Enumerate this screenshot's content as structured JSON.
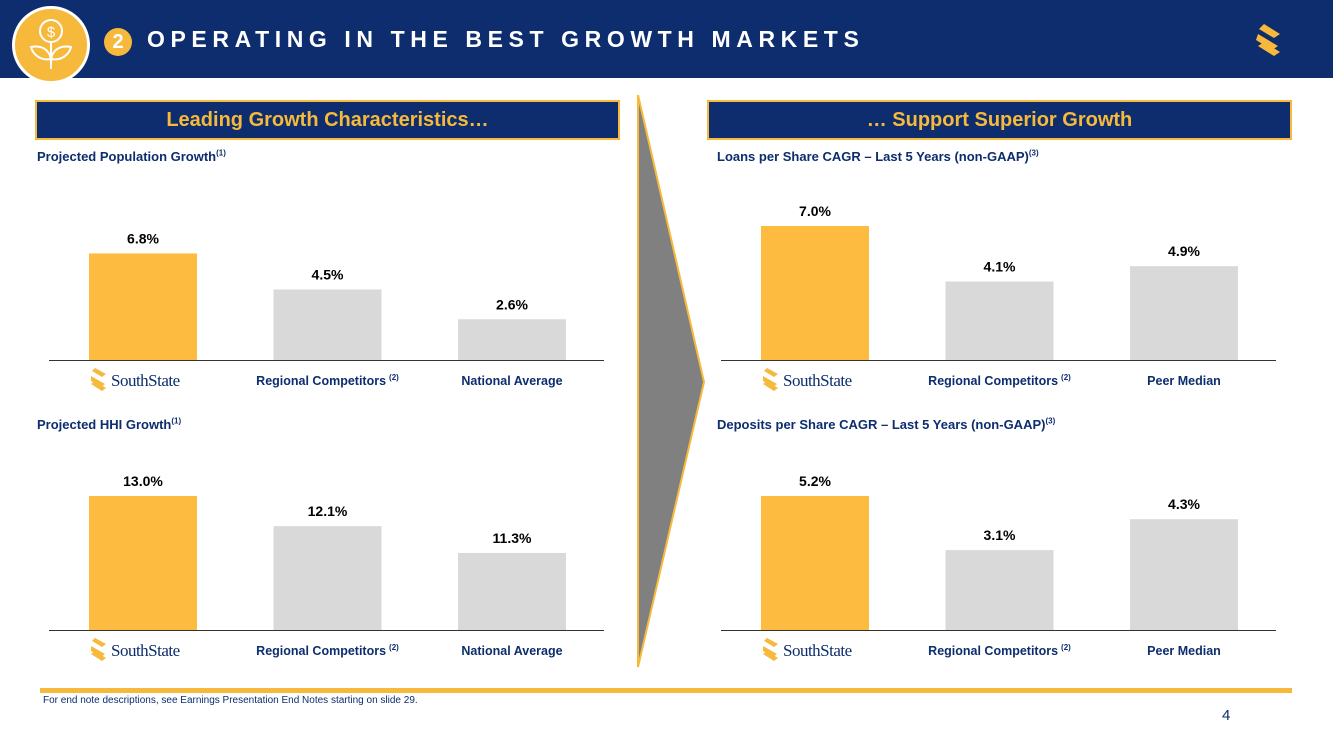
{
  "header": {
    "section_number": "2",
    "title": "OPERATING IN THE BEST GROWTH MARKETS",
    "icon": "money-plant-icon",
    "brand_icon": "southstate-s-logo-icon"
  },
  "colors": {
    "navy": "#0d2d6e",
    "gold": "#f6b93b",
    "bar_gold": "#fdbb3f",
    "bar_gray": "#d9d9d9",
    "arrow_gray": "#808080"
  },
  "left_panel": {
    "header": "Leading Growth Characteristics…"
  },
  "right_panel": {
    "header": "… Support Superior Growth"
  },
  "brand_name": "SouthState",
  "chart_data": [
    {
      "type": "bar",
      "title": "Projected Population Growth",
      "title_note": "(1)",
      "categories": [
        "SouthState",
        "Regional Competitors",
        "National Average"
      ],
      "category_notes": [
        "",
        "(2)",
        ""
      ],
      "values": [
        6.8,
        4.5,
        2.6
      ],
      "labels": [
        "6.8%",
        "4.5%",
        "2.6%"
      ],
      "ylim": [
        0,
        8.55
      ],
      "highlight_index": 0,
      "xlabel": "",
      "ylabel": ""
    },
    {
      "type": "bar",
      "title": "Projected HHI Growth",
      "title_note": "(1)",
      "categories": [
        "SouthState",
        "Regional Competitors",
        "National Average"
      ],
      "category_notes": [
        "",
        "(2)",
        ""
      ],
      "values": [
        13.0,
        12.1,
        11.3
      ],
      "labels": [
        "13.0%",
        "12.1%",
        "11.3%"
      ],
      "ylim": [
        9.0,
        13.0
      ],
      "highlight_index": 0,
      "xlabel": "",
      "ylabel": ""
    },
    {
      "type": "bar",
      "title": "Loans per Share CAGR – Last 5 Years (non-GAAP)",
      "title_note": "(3)",
      "categories": [
        "SouthState",
        "Regional Competitors",
        "Peer Median"
      ],
      "category_notes": [
        "",
        "(2)",
        ""
      ],
      "values": [
        7.0,
        4.1,
        4.9
      ],
      "labels": [
        "7.0%",
        "4.1%",
        "4.9%"
      ],
      "ylim": [
        0,
        7.0
      ],
      "highlight_index": 0,
      "xlabel": "",
      "ylabel": ""
    },
    {
      "type": "bar",
      "title": "Deposits per Share CAGR – Last 5 Years (non-GAAP)",
      "title_note": "(3)",
      "categories": [
        "SouthState",
        "Regional Competitors",
        "Peer Median"
      ],
      "category_notes": [
        "",
        "(2)",
        ""
      ],
      "values": [
        5.2,
        3.1,
        4.3
      ],
      "labels": [
        "5.2%",
        "3.1%",
        "4.3%"
      ],
      "ylim": [
        0,
        5.2
      ],
      "highlight_index": 0,
      "xlabel": "",
      "ylabel": ""
    }
  ],
  "footer": {
    "note": "For end note descriptions, see Earnings Presentation End Notes starting on slide 29.",
    "page_number": "4"
  }
}
